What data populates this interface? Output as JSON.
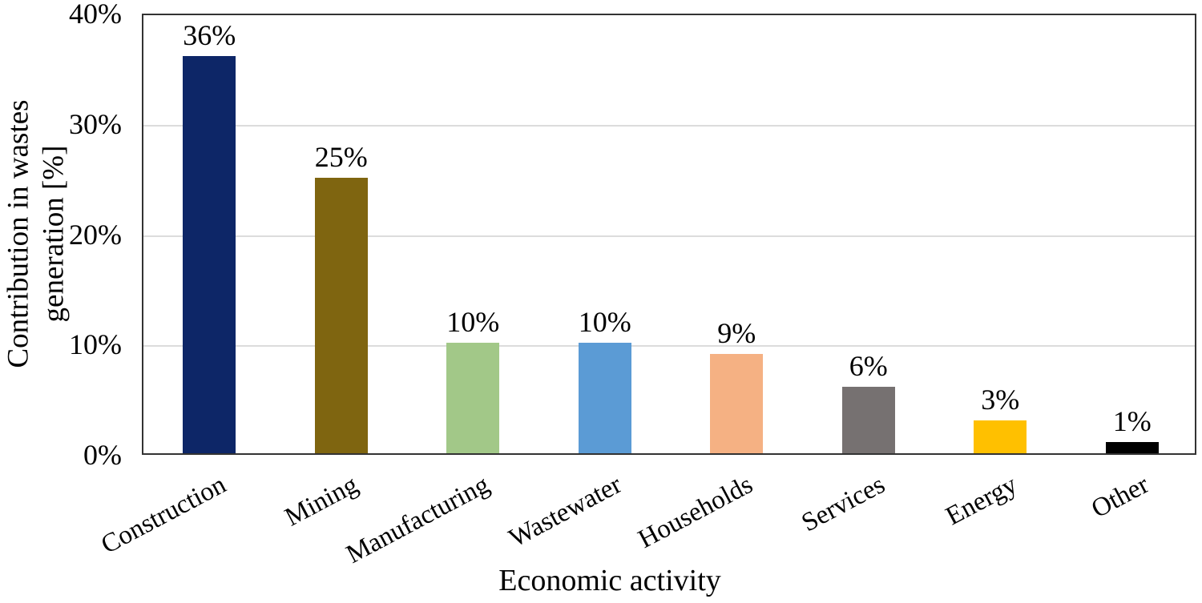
{
  "chart_data": {
    "type": "bar",
    "title": "",
    "xlabel": "Economic activity",
    "ylabel_lines": [
      "Contribution in wastes",
      "generation [%]"
    ],
    "categories": [
      "Construction",
      "Mining",
      "Manufacturing",
      "Wastewater",
      "Households",
      "Services",
      "Energy",
      "Other"
    ],
    "values": [
      36,
      25,
      10,
      10,
      9,
      6,
      3,
      1
    ],
    "value_labels": [
      "36%",
      "25%",
      "10%",
      "10%",
      "9%",
      "6%",
      "3%",
      "1%"
    ],
    "bar_colors": [
      "#0d2667",
      "#7f6510",
      "#a2c888",
      "#5b9bd5",
      "#f5b183",
      "#767171",
      "#ffc000",
      "#000000"
    ],
    "y_ticks": [
      {
        "label": "0%",
        "value": 0
      },
      {
        "label": "10%",
        "value": 10
      },
      {
        "label": "20%",
        "value": 20
      },
      {
        "label": "30%",
        "value": 30
      },
      {
        "label": "40%",
        "value": 40
      }
    ],
    "gridline_values": [
      10,
      20,
      30
    ],
    "ylim": [
      0,
      40
    ],
    "grid": "horizontal",
    "legend": "none",
    "colors": {
      "plot_border": "#333333",
      "gridline": "#dcdcdc",
      "text": "#000000",
      "background": "#ffffff"
    }
  }
}
